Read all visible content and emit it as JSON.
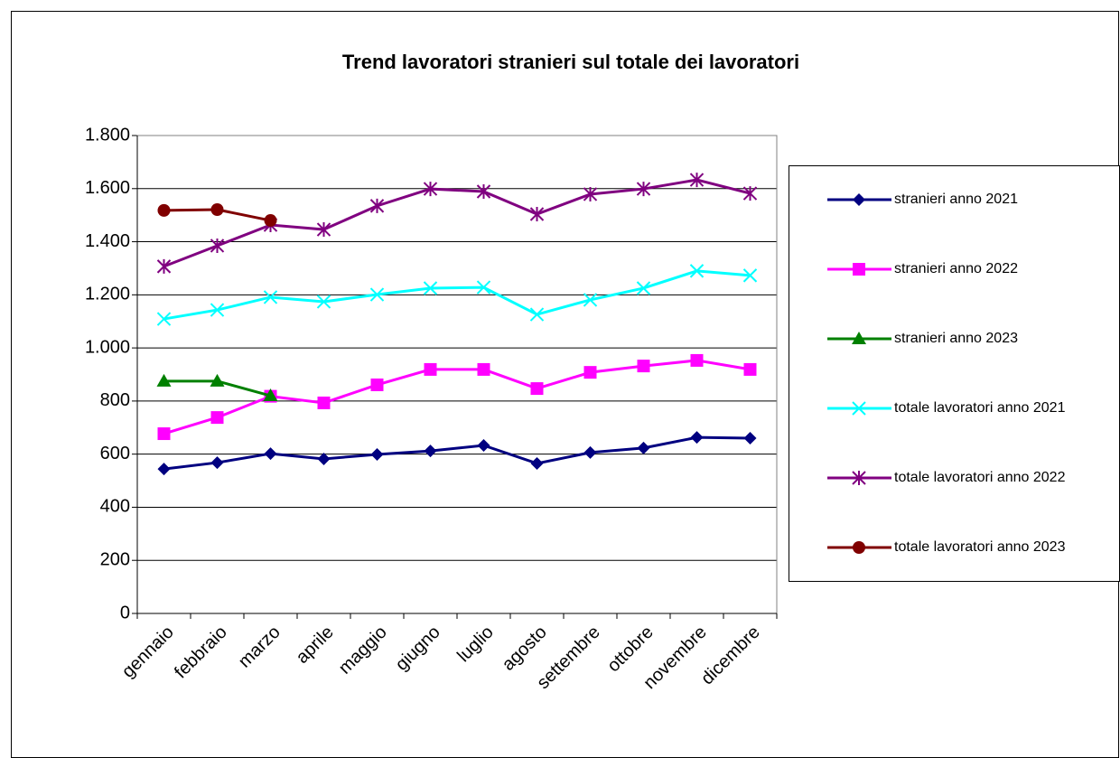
{
  "chart_data": {
    "type": "line",
    "title": "Trend lavoratori stranieri sul totale dei lavoratori",
    "categories": [
      "gennaio",
      "febbraio",
      "marzo",
      "aprile",
      "maggio",
      "giugno",
      "luglio",
      "agosto",
      "settembre",
      "ottobre",
      "novembre",
      "dicembre"
    ],
    "series": [
      {
        "name": "stranieri anno 2021",
        "color": "#000080",
        "marker": "diamond",
        "values": [
          544,
          568,
          602,
          582,
          599,
          612,
          633,
          565,
          606,
          623,
          663,
          660
        ]
      },
      {
        "name": "stranieri anno 2022",
        "color": "#ff00ff",
        "marker": "square",
        "values": [
          677,
          738,
          818,
          793,
          861,
          919,
          919,
          847,
          908,
          932,
          953,
          919
        ]
      },
      {
        "name": "stranieri anno 2023",
        "color": "#008000",
        "marker": "triangle",
        "values": [
          875,
          875,
          820,
          null,
          null,
          null,
          null,
          null,
          null,
          null,
          null,
          null
        ]
      },
      {
        "name": "totale lavoratori anno 2021",
        "color": "#00ffff",
        "marker": "x",
        "values": [
          1109,
          1143,
          1191,
          1174,
          1201,
          1225,
          1228,
          1126,
          1181,
          1225,
          1290,
          1273
        ]
      },
      {
        "name": "totale lavoratori anno 2022",
        "color": "#800080",
        "marker": "asterisk",
        "values": [
          1307,
          1385,
          1463,
          1446,
          1535,
          1599,
          1589,
          1504,
          1579,
          1599,
          1633,
          1582
        ]
      },
      {
        "name": "totale lavoratori anno 2023",
        "color": "#800000",
        "marker": "circle",
        "values": [
          1518,
          1521,
          1480,
          null,
          null,
          null,
          null,
          null,
          null,
          null,
          null,
          null
        ]
      }
    ],
    "ylim": [
      0,
      1800
    ],
    "yticks": [
      0,
      200,
      400,
      600,
      800,
      {
        "value": 1000,
        "label": "1.000"
      },
      {
        "value": 1200,
        "label": "1.200"
      },
      {
        "value": 1400,
        "label": "1.400"
      },
      {
        "value": 1600,
        "label": "1.600"
      },
      {
        "value": 1800,
        "label": "1.800"
      }
    ],
    "grid": true,
    "legend": "right"
  }
}
